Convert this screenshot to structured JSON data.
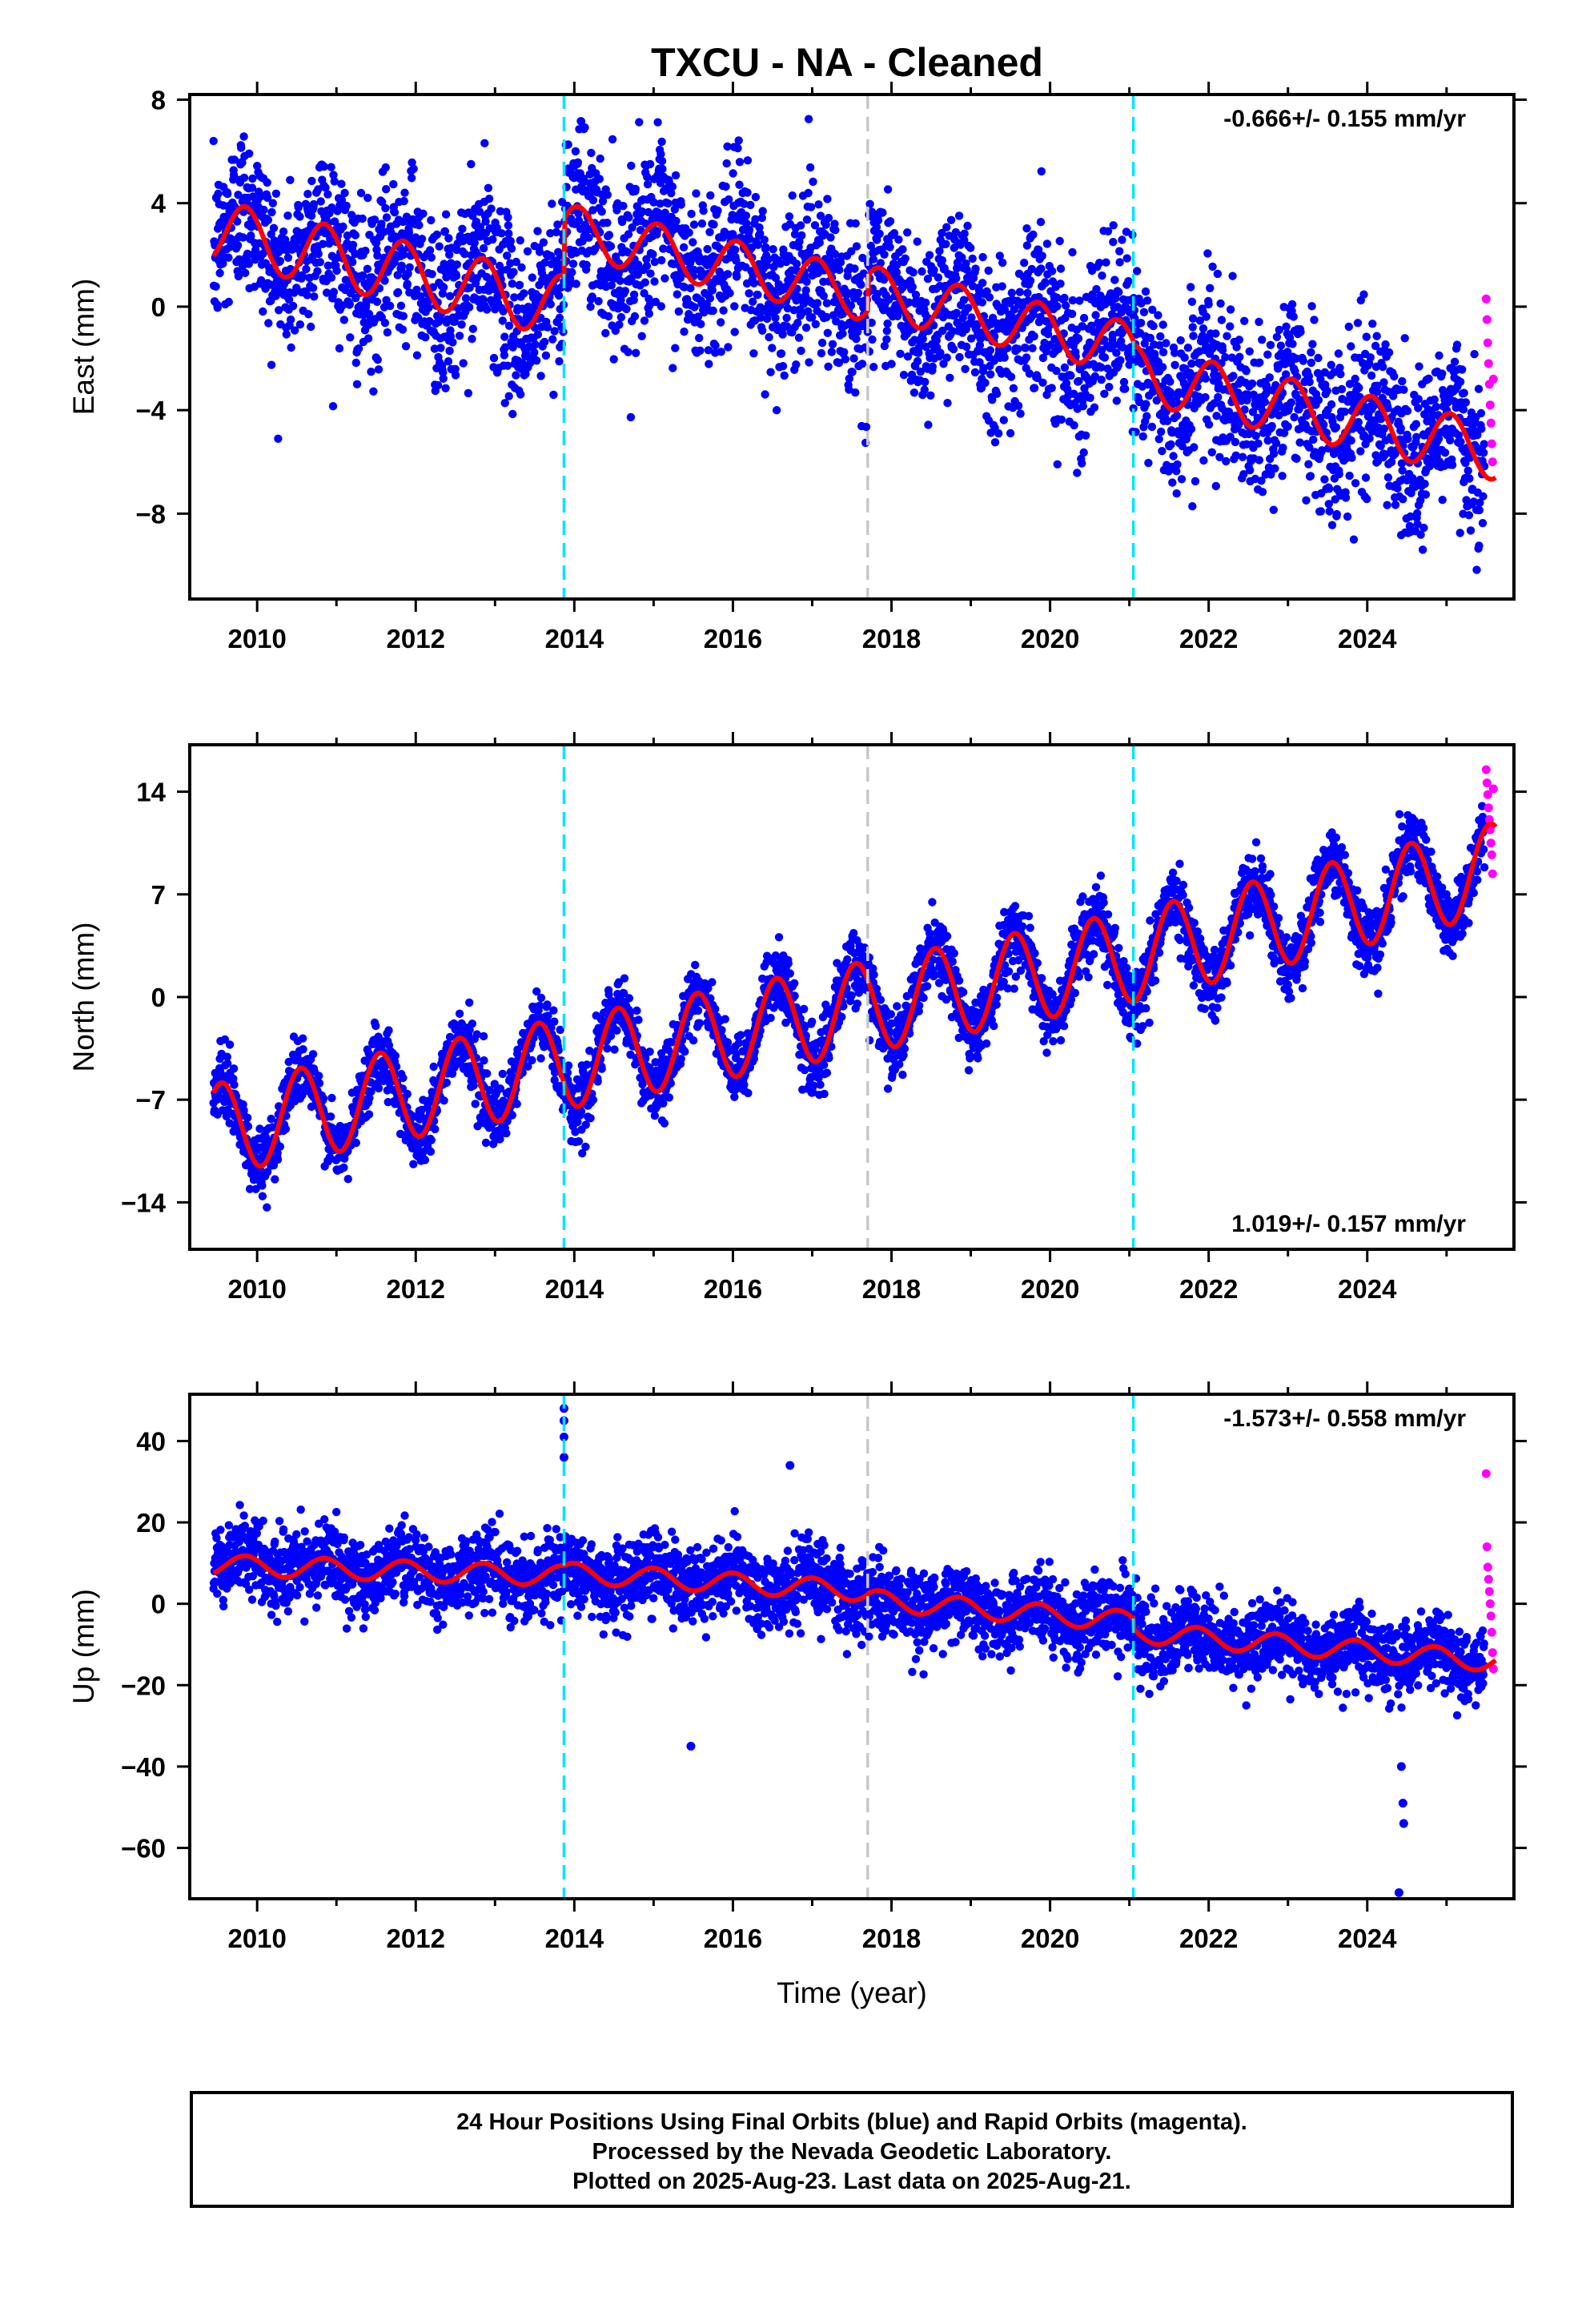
{
  "title": "TXCU  - NA - Cleaned",
  "footer": {
    "line1": "24 Hour Positions Using Final Orbits (blue) and Rapid Orbits (magenta).",
    "line2": "Processed by the Nevada Geodetic Laboratory.",
    "line3": "Plotted on 2025-Aug-23. Last data on 2025-Aug-21."
  },
  "colors": {
    "final_orbits": "#0000ff",
    "rapid_orbits": "#ff00ff",
    "model_fit": "#ff0000",
    "equipment_change": "#00e5ff",
    "other_event": "#c8c8c8"
  },
  "chart_data": [
    {
      "type": "scatter",
      "panel": "east",
      "title": "TXCU  - NA - Cleaned",
      "xlabel": "",
      "ylabel": "East (mm)",
      "xlim": [
        2009.15,
        2025.85
      ],
      "ylim": [
        -11.3,
        8.2
      ],
      "xticks": [
        2010,
        2012,
        2014,
        2016,
        2018,
        2020,
        2022,
        2024
      ],
      "xtick_labels": [
        "2010",
        "2012",
        "2014",
        "2016",
        "2018",
        "2020",
        "2022",
        "2024"
      ],
      "yticks": [
        8,
        4,
        0,
        -4,
        -8
      ],
      "ytick_labels": [
        "8",
        "4",
        "0",
        "−4",
        "−8"
      ],
      "rate_label": "-0.666+/- 0.155 mm/yr",
      "rate_position": "top-right",
      "vertical_lines": [
        {
          "x": 2013.87,
          "style": "equipment_change"
        },
        {
          "x": 2017.7,
          "style": "other_event"
        },
        {
          "x": 2021.05,
          "style": "equipment_change"
        }
      ],
      "model": {
        "segments": [
          {
            "start": 2009.45,
            "end": 2013.87,
            "y_at_2009_5": 2.9,
            "rate": -0.666,
            "annual_amp": 1.2,
            "annual_peak": 2009.85
          },
          {
            "start": 2013.87,
            "end": 2017.7,
            "y_at_2014": 2.9,
            "rate": -0.666,
            "annual_amp": 1.0,
            "annual_peak": 2014.05
          },
          {
            "start": 2017.7,
            "end": 2021.05,
            "y_at_2018": 0.4,
            "rate": -0.666,
            "annual_amp": 1.0,
            "annual_peak": 2017.85
          },
          {
            "start": 2021.05,
            "end": 2025.62,
            "y_at_2022": -3.2,
            "rate": -0.666,
            "annual_amp": 1.1,
            "annual_peak": 2022.05
          }
        ]
      },
      "scatter_noise_sd": 1.6,
      "rapid_orbit_points": [
        {
          "x": 2025.5,
          "y": 0.3
        },
        {
          "x": 2025.51,
          "y": -0.5
        },
        {
          "x": 2025.52,
          "y": -1.4
        },
        {
          "x": 2025.53,
          "y": -2.2
        },
        {
          "x": 2025.54,
          "y": -3.0
        },
        {
          "x": 2025.55,
          "y": -3.8
        },
        {
          "x": 2025.56,
          "y": -4.5
        },
        {
          "x": 2025.57,
          "y": -5.3
        },
        {
          "x": 2025.58,
          "y": -6.0
        },
        {
          "x": 2025.59,
          "y": -2.8
        }
      ]
    },
    {
      "type": "scatter",
      "panel": "north",
      "xlabel": "",
      "ylabel": "North (mm)",
      "xlim": [
        2009.15,
        2025.85
      ],
      "ylim": [
        -17.2,
        17.2
      ],
      "xticks": [
        2010,
        2012,
        2014,
        2016,
        2018,
        2020,
        2022,
        2024
      ],
      "xtick_labels": [
        "2010",
        "2012",
        "2014",
        "2016",
        "2018",
        "2020",
        "2022",
        "2024"
      ],
      "yticks": [
        14,
        7,
        0,
        -7,
        -14
      ],
      "ytick_labels": [
        "14",
        "7",
        "0",
        "−7",
        "−14"
      ],
      "rate_label": "1.019+/- 0.157 mm/yr",
      "rate_position": "bottom-right",
      "vertical_lines": [
        {
          "x": 2013.87,
          "style": "equipment_change"
        },
        {
          "x": 2017.7,
          "style": "other_event"
        },
        {
          "x": 2021.05,
          "style": "equipment_change"
        }
      ],
      "model": {
        "trend_start": {
          "x": 2009.5,
          "y": -9.0
        },
        "rate": 1.019,
        "annual_amp": 3.1,
        "annual_peak": 2009.55,
        "extra_rate_after_2021": 0.3
      },
      "scatter_noise_sd": 1.1,
      "rapid_orbit_points": [
        {
          "x": 2025.5,
          "y": 15.5
        },
        {
          "x": 2025.51,
          "y": 14.6
        },
        {
          "x": 2025.52,
          "y": 13.8
        },
        {
          "x": 2025.53,
          "y": 12.9
        },
        {
          "x": 2025.54,
          "y": 12.1
        },
        {
          "x": 2025.55,
          "y": 11.4
        },
        {
          "x": 2025.56,
          "y": 10.5
        },
        {
          "x": 2025.57,
          "y": 9.7
        },
        {
          "x": 2025.58,
          "y": 8.4
        },
        {
          "x": 2025.59,
          "y": 14.2
        }
      ]
    },
    {
      "type": "scatter",
      "panel": "up",
      "xlabel": "Time (year)",
      "ylabel": "Up (mm)",
      "xlim": [
        2009.15,
        2025.85
      ],
      "ylim": [
        -72.5,
        51.5
      ],
      "xticks": [
        2010,
        2012,
        2014,
        2016,
        2018,
        2020,
        2022,
        2024
      ],
      "xtick_labels": [
        "2010",
        "2012",
        "2014",
        "2016",
        "2018",
        "2020",
        "2022",
        "2024"
      ],
      "yticks": [
        40,
        20,
        0,
        -20,
        -40,
        -60
      ],
      "ytick_labels": [
        "40",
        "20",
        "0",
        "−20",
        "−40",
        "−60"
      ],
      "rate_label": "-1.573+/- 0.558 mm/yr",
      "rate_position": "top-right",
      "vertical_lines": [
        {
          "x": 2013.87,
          "style": "equipment_change"
        },
        {
          "x": 2017.7,
          "style": "other_event"
        },
        {
          "x": 2021.05,
          "style": "equipment_change"
        }
      ],
      "model": {
        "segments": [
          {
            "start": 2009.45,
            "end": 2013.87,
            "y_at_2009_5": 9.5,
            "rate": -0.6,
            "annual_amp": 2.5,
            "annual_peak": 2009.85
          },
          {
            "start": 2013.87,
            "end": 2017.7,
            "y_at_2014": 7.5,
            "rate": -1.2,
            "annual_amp": 2.5,
            "annual_peak": 2014.0
          },
          {
            "start": 2017.7,
            "end": 2021.05,
            "y_at_2018": 0.5,
            "rate": -1.6,
            "annual_amp": 2.5,
            "annual_peak": 2017.85
          },
          {
            "start": 2021.05,
            "end": 2025.62,
            "y_at_2022": -8.5,
            "rate": -1.573,
            "annual_amp": 2.5,
            "annual_peak": 2021.85
          }
        ]
      },
      "scatter_noise_sd": 4.6,
      "outliers": [
        {
          "x": 2013.87,
          "y": 48
        },
        {
          "x": 2013.87,
          "y": 45
        },
        {
          "x": 2013.87,
          "y": 41
        },
        {
          "x": 2013.87,
          "y": 36
        },
        {
          "x": 2015.47,
          "y": -35
        },
        {
          "x": 2016.72,
          "y": 34
        },
        {
          "x": 2024.43,
          "y": -40
        },
        {
          "x": 2024.45,
          "y": -49
        },
        {
          "x": 2024.46,
          "y": -54
        },
        {
          "x": 2024.4,
          "y": -71
        }
      ],
      "rapid_orbit_points": [
        {
          "x": 2025.5,
          "y": 32
        },
        {
          "x": 2025.51,
          "y": 14
        },
        {
          "x": 2025.52,
          "y": 9
        },
        {
          "x": 2025.53,
          "y": 6
        },
        {
          "x": 2025.54,
          "y": 3
        },
        {
          "x": 2025.55,
          "y": 0
        },
        {
          "x": 2025.56,
          "y": -3
        },
        {
          "x": 2025.57,
          "y": -7
        },
        {
          "x": 2025.58,
          "y": -12
        },
        {
          "x": 2025.59,
          "y": -16
        }
      ]
    }
  ]
}
